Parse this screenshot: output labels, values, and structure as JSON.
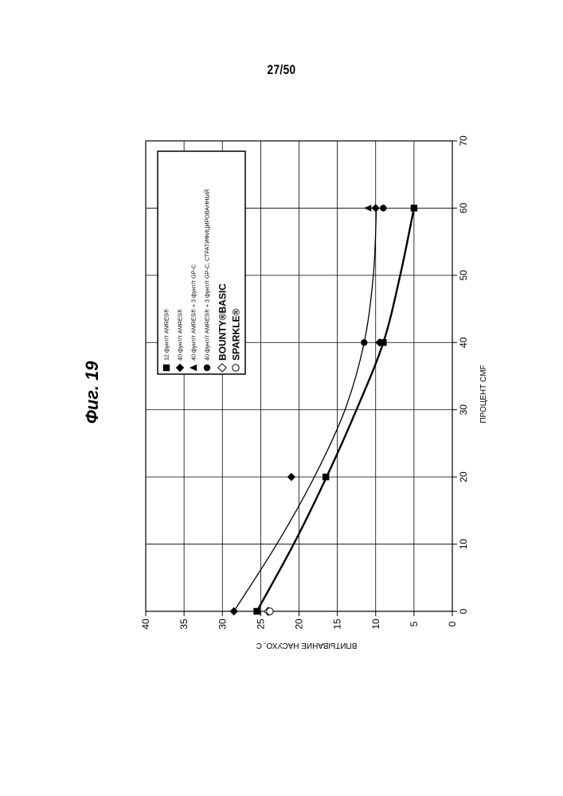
{
  "page": {
    "number": "27/50"
  },
  "figure": {
    "title": "Фиг. 19"
  },
  "chart_data": {
    "type": "scatter",
    "orientation": "rotated-90-ccw",
    "xlabel": "ПРОЦЕНТ CMF",
    "ylabel": "ВПИТЫВАНИЕ НАСУХО, С",
    "xlim": [
      0,
      70
    ],
    "ylim": [
      0,
      40
    ],
    "x_ticks": [
      "0",
      "10",
      "20",
      "30",
      "40",
      "50",
      "60",
      "70"
    ],
    "y_ticks": [
      "0",
      "5",
      "10",
      "15",
      "20",
      "25",
      "30",
      "35",
      "40"
    ],
    "grid": true,
    "legend_position": "top-left",
    "series": [
      {
        "name": "12 фунт/т AMRES®",
        "marker": "square",
        "x": [
          0,
          20,
          40,
          60
        ],
        "y": [
          25.5,
          16.5,
          9.0,
          5.0
        ]
      },
      {
        "name": "40 фунт/т AMRES®",
        "marker": "diamond",
        "x": [
          0,
          20,
          40,
          60
        ],
        "y": [
          28.5,
          21.0,
          9.5,
          10.0
        ]
      },
      {
        "name": "40 фунт/т AMRES® + 3 фунт/т GP-C",
        "marker": "triangle",
        "x": [
          40,
          60
        ],
        "y": [
          9.2,
          11.0
        ]
      },
      {
        "name": "40 фунт/т AMRES® + 3 фунт/т GP-C, СТРАТИФИЦИРОВАННЫЙ",
        "marker": "circle",
        "x": [
          40,
          60
        ],
        "y": [
          11.5,
          9.0
        ]
      },
      {
        "name": "BOUNTY®BASIC",
        "marker": "diamond-open",
        "x": [
          0
        ],
        "y": [
          24.0
        ]
      },
      {
        "name": "SPARKLE®",
        "marker": "circle-open",
        "x": [
          0
        ],
        "y": [
          23.8
        ]
      }
    ],
    "trendlines": [
      {
        "style": "thick",
        "x": [
          0,
          10,
          20,
          30,
          40,
          50,
          60
        ],
        "y": [
          25.5,
          20.7,
          16.4,
          12.5,
          9.0,
          6.8,
          5.0
        ]
      },
      {
        "style": "thin",
        "x": [
          0,
          10,
          20,
          30,
          40,
          50,
          60
        ],
        "y": [
          28.5,
          22.9,
          18.0,
          14.0,
          11.5,
          10.3,
          9.9
        ]
      }
    ]
  }
}
